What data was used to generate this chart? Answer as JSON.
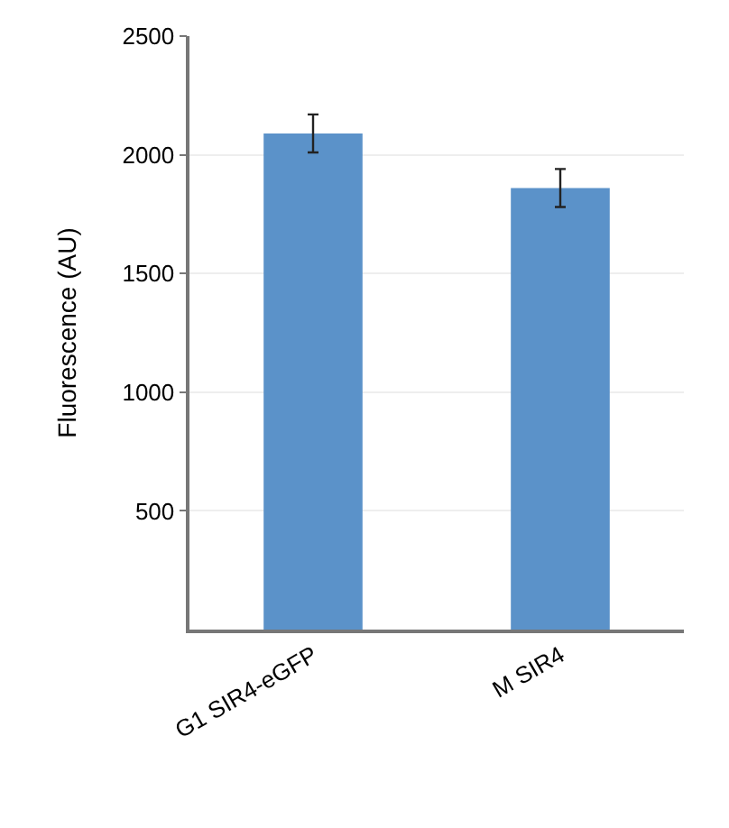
{
  "chart_data": {
    "type": "bar",
    "ylabel": "Fluorescence (AU)",
    "categories": [
      "G1 SIR4-eGFP",
      "M SIR4"
    ],
    "values": [
      2090,
      1860
    ],
    "errors": [
      80,
      80
    ],
    "color": "#5b92c9",
    "ylim": [
      0,
      2500
    ],
    "yticks": [
      500,
      1000,
      1500,
      2000,
      2500
    ],
    "grid": "y"
  }
}
